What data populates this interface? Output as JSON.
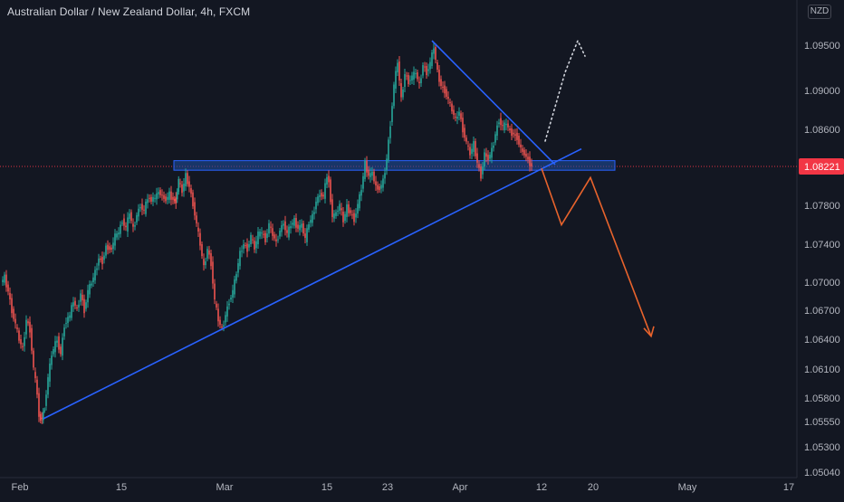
{
  "header": {
    "symbol_title": "Australian Dollar / New Zealand Dollar, 4h, FXCM",
    "currency": "NZD"
  },
  "colors": {
    "background": "#131722",
    "up_candle": "#26a69a",
    "down_candle": "#ef5350",
    "trendline": "#2962ff",
    "projection": "#e8632c",
    "dotted_projection": "#d1d4dc",
    "zone_fill": "#1e4fa3",
    "price_label": "#f23645",
    "grid": "#2a2e39",
    "axis_text": "#b2b5be"
  },
  "chart_data": {
    "type": "candlestick",
    "symbol": "AUDNZD",
    "timeframe": "4h",
    "current_price": 1.08221,
    "current_price_label": "1.08221",
    "y_ticks": [
      "1.09500",
      "1.09000",
      "1.08600",
      "1.08221",
      "1.07800",
      "1.07400",
      "1.07000",
      "1.06700",
      "1.06400",
      "1.06100",
      "1.05800",
      "1.05550",
      "1.05300",
      "1.05040"
    ],
    "x_ticks": [
      "Feb",
      "15",
      "Mar",
      "15",
      "23",
      "Apr",
      "12",
      "20",
      "May",
      "17"
    ],
    "ylim": [
      1.0504,
      1.0985
    ],
    "candles_close_path": [
      [
        0,
        1.07
      ],
      [
        4,
        1.0705
      ],
      [
        8,
        1.069
      ],
      [
        12,
        1.067
      ],
      [
        16,
        1.0655
      ],
      [
        20,
        1.064
      ],
      [
        24,
        1.063
      ],
      [
        28,
        1.066
      ],
      [
        32,
        1.065
      ],
      [
        36,
        1.061
      ],
      [
        40,
        1.0585
      ],
      [
        42,
        1.056
      ],
      [
        45,
        1.0558
      ],
      [
        48,
        1.057
      ],
      [
        52,
        1.06
      ],
      [
        56,
        1.0625
      ],
      [
        62,
        1.064
      ],
      [
        66,
        1.0625
      ],
      [
        70,
        1.0655
      ],
      [
        76,
        1.0665
      ],
      [
        80,
        1.068
      ],
      [
        84,
        1.067
      ],
      [
        88,
        1.0688
      ],
      [
        92,
        1.067
      ],
      [
        96,
        1.069
      ],
      [
        100,
        1.07
      ],
      [
        104,
        1.071
      ],
      [
        108,
        1.0725
      ],
      [
        112,
        1.0722
      ],
      [
        116,
        1.0737
      ],
      [
        122,
        1.0735
      ],
      [
        126,
        1.0748
      ],
      [
        130,
        1.0752
      ],
      [
        134,
        1.0765
      ],
      [
        138,
        1.0756
      ],
      [
        142,
        1.0773
      ],
      [
        146,
        1.0755
      ],
      [
        150,
        1.077
      ],
      [
        154,
        1.078
      ],
      [
        158,
        1.0774
      ],
      [
        162,
        1.0788
      ],
      [
        166,
        1.0786
      ],
      [
        170,
        1.0788
      ],
      [
        174,
        1.0795
      ],
      [
        178,
        1.079
      ],
      [
        182,
        1.0786
      ],
      [
        186,
        1.0792
      ],
      [
        190,
        1.0786
      ],
      [
        193,
        1.0785
      ],
      [
        196,
        1.0807
      ],
      [
        200,
        1.0795
      ],
      [
        204,
        1.0812
      ],
      [
        208,
        1.08
      ],
      [
        212,
        1.0782
      ],
      [
        216,
        1.076
      ],
      [
        220,
        1.074
      ],
      [
        224,
        1.0715
      ],
      [
        228,
        1.0735
      ],
      [
        232,
        1.072
      ],
      [
        236,
        1.068
      ],
      [
        240,
        1.066
      ],
      [
        244,
        1.065
      ],
      [
        248,
        1.0665
      ],
      [
        252,
        1.068
      ],
      [
        256,
        1.069
      ],
      [
        260,
        1.071
      ],
      [
        264,
        1.073
      ],
      [
        268,
        1.074
      ],
      [
        272,
        1.0735
      ],
      [
        276,
        1.0748
      ],
      [
        280,
        1.0736
      ],
      [
        284,
        1.075
      ],
      [
        288,
        1.0752
      ],
      [
        292,
        1.0745
      ],
      [
        296,
        1.076
      ],
      [
        300,
        1.075
      ],
      [
        304,
        1.0742
      ],
      [
        308,
        1.0754
      ],
      [
        312,
        1.0762
      ],
      [
        316,
        1.075
      ],
      [
        320,
        1.076
      ],
      [
        324,
        1.0764
      ],
      [
        328,
        1.0756
      ],
      [
        332,
        1.076
      ],
      [
        336,
        1.0745
      ],
      [
        340,
        1.0762
      ],
      [
        344,
        1.0768
      ],
      [
        348,
        1.0784
      ],
      [
        352,
        1.0792
      ],
      [
        356,
        1.079
      ],
      [
        360,
        1.0812
      ],
      [
        362,
        1.0805
      ],
      [
        366,
        1.0768
      ],
      [
        370,
        1.0772
      ],
      [
        374,
        1.078
      ],
      [
        378,
        1.0764
      ],
      [
        382,
        1.0778
      ],
      [
        386,
        1.0772
      ],
      [
        390,
        1.0766
      ],
      [
        394,
        1.078
      ],
      [
        398,
        1.0798
      ],
      [
        402,
        1.0825
      ],
      [
        406,
        1.0812
      ],
      [
        410,
        1.0815
      ],
      [
        414,
        1.08
      ],
      [
        418,
        1.0798
      ],
      [
        422,
        1.0806
      ],
      [
        426,
        1.083
      ],
      [
        430,
        1.0866
      ],
      [
        434,
        1.0905
      ],
      [
        438,
        1.0932
      ],
      [
        442,
        1.089
      ],
      [
        446,
        1.0918
      ],
      [
        450,
        1.091
      ],
      [
        454,
        1.0915
      ],
      [
        458,
        1.092
      ],
      [
        462,
        1.0905
      ],
      [
        466,
        1.0928
      ],
      [
        470,
        1.092
      ],
      [
        474,
        1.093
      ],
      [
        478,
        1.0948
      ],
      [
        482,
        1.092
      ],
      [
        486,
        1.0905
      ],
      [
        490,
        1.09
      ],
      [
        494,
        1.089
      ],
      [
        498,
        1.088
      ],
      [
        502,
        1.087
      ],
      [
        506,
        1.0878
      ],
      [
        510,
        1.086
      ],
      [
        514,
        1.0846
      ],
      [
        518,
        1.0835
      ],
      [
        522,
        1.0845
      ],
      [
        526,
        1.0826
      ],
      [
        530,
        1.0812
      ],
      [
        534,
        1.0835
      ],
      [
        538,
        1.083
      ],
      [
        542,
        1.0838
      ],
      [
        546,
        1.0855
      ],
      [
        550,
        1.087
      ],
      [
        554,
        1.0862
      ],
      [
        558,
        1.0866
      ],
      [
        562,
        1.0858
      ],
      [
        566,
        1.0855
      ],
      [
        570,
        1.0852
      ],
      [
        574,
        1.084
      ],
      [
        578,
        1.0835
      ],
      [
        582,
        1.0829
      ],
      [
        586,
        1.0822
      ]
    ],
    "zone": {
      "low": 1.0818,
      "high": 1.0828,
      "from_x": 190,
      "to_x": 677
    },
    "annotations": [
      {
        "kind": "ascending-trendline",
        "points": [
          [
            46,
            1.0558
          ],
          [
            640,
            1.084
          ]
        ]
      },
      {
        "kind": "descending-trendline",
        "points": [
          [
            475,
            1.0955
          ],
          [
            611,
            1.0824
          ]
        ]
      },
      {
        "kind": "bearish-projection",
        "points": [
          [
            596,
            1.082
          ],
          [
            618,
            1.076
          ],
          [
            650,
            1.081
          ],
          [
            717,
            1.0643
          ]
        ]
      },
      {
        "kind": "bullish-projection-dotted",
        "points": [
          [
            600,
            1.0848
          ],
          [
            622,
            1.092
          ],
          [
            636,
            1.0955
          ],
          [
            644,
            1.0938
          ]
        ]
      }
    ]
  }
}
